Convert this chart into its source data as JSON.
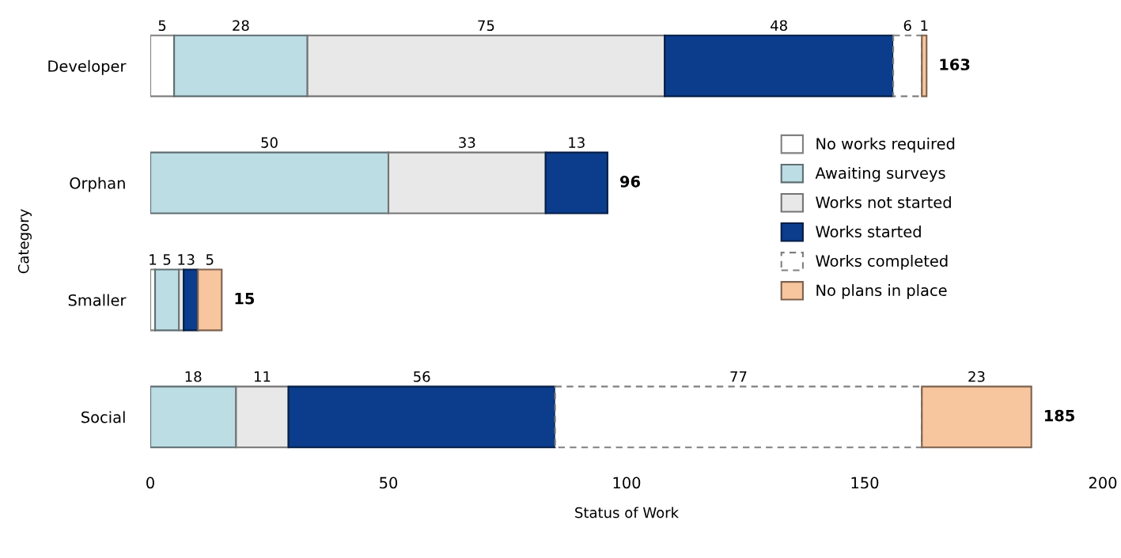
{
  "chart_data": {
    "type": "bar",
    "orientation": "horizontal",
    "stacked": true,
    "xlabel": "Status of Work",
    "ylabel": "Category",
    "categories": [
      "Developer",
      "Orphan",
      "Smaller",
      "Social"
    ],
    "series": [
      {
        "name": "No works required",
        "color": "#ffffff",
        "values": [
          5,
          0,
          1,
          0
        ],
        "value_labels": [
          "5",
          null,
          "1",
          null
        ]
      },
      {
        "name": "Awaiting surveys",
        "color": "#bcdde3",
        "values": [
          28,
          50,
          5,
          18
        ],
        "value_labels": [
          "28",
          "50",
          "5",
          "18"
        ]
      },
      {
        "name": "Works not started",
        "color": "#e8e8e8",
        "values": [
          75,
          33,
          1,
          11
        ],
        "value_labels": [
          "75",
          "33",
          "1",
          "11"
        ]
      },
      {
        "name": "Works started",
        "color": "#0b3d8c",
        "values": [
          48,
          13,
          3,
          56
        ],
        "value_labels": [
          "48",
          "13",
          "3",
          "56"
        ]
      },
      {
        "name": "Works completed",
        "color": "#ffffff",
        "line_style": "dashed",
        "values": [
          6,
          0,
          0,
          77
        ],
        "value_labels": [
          "6",
          null,
          null,
          "77"
        ]
      },
      {
        "name": "No plans in place",
        "color": "#f7c59e",
        "values": [
          1,
          0,
          5,
          23
        ],
        "value_labels": [
          "1",
          null,
          "5",
          "23"
        ]
      }
    ],
    "totals": [
      "163",
      "96",
      "15",
      "185"
    ],
    "xlim": [
      0,
      200
    ],
    "xticks": [
      0,
      50,
      100,
      150,
      200
    ],
    "grid": false,
    "legend": "right"
  }
}
